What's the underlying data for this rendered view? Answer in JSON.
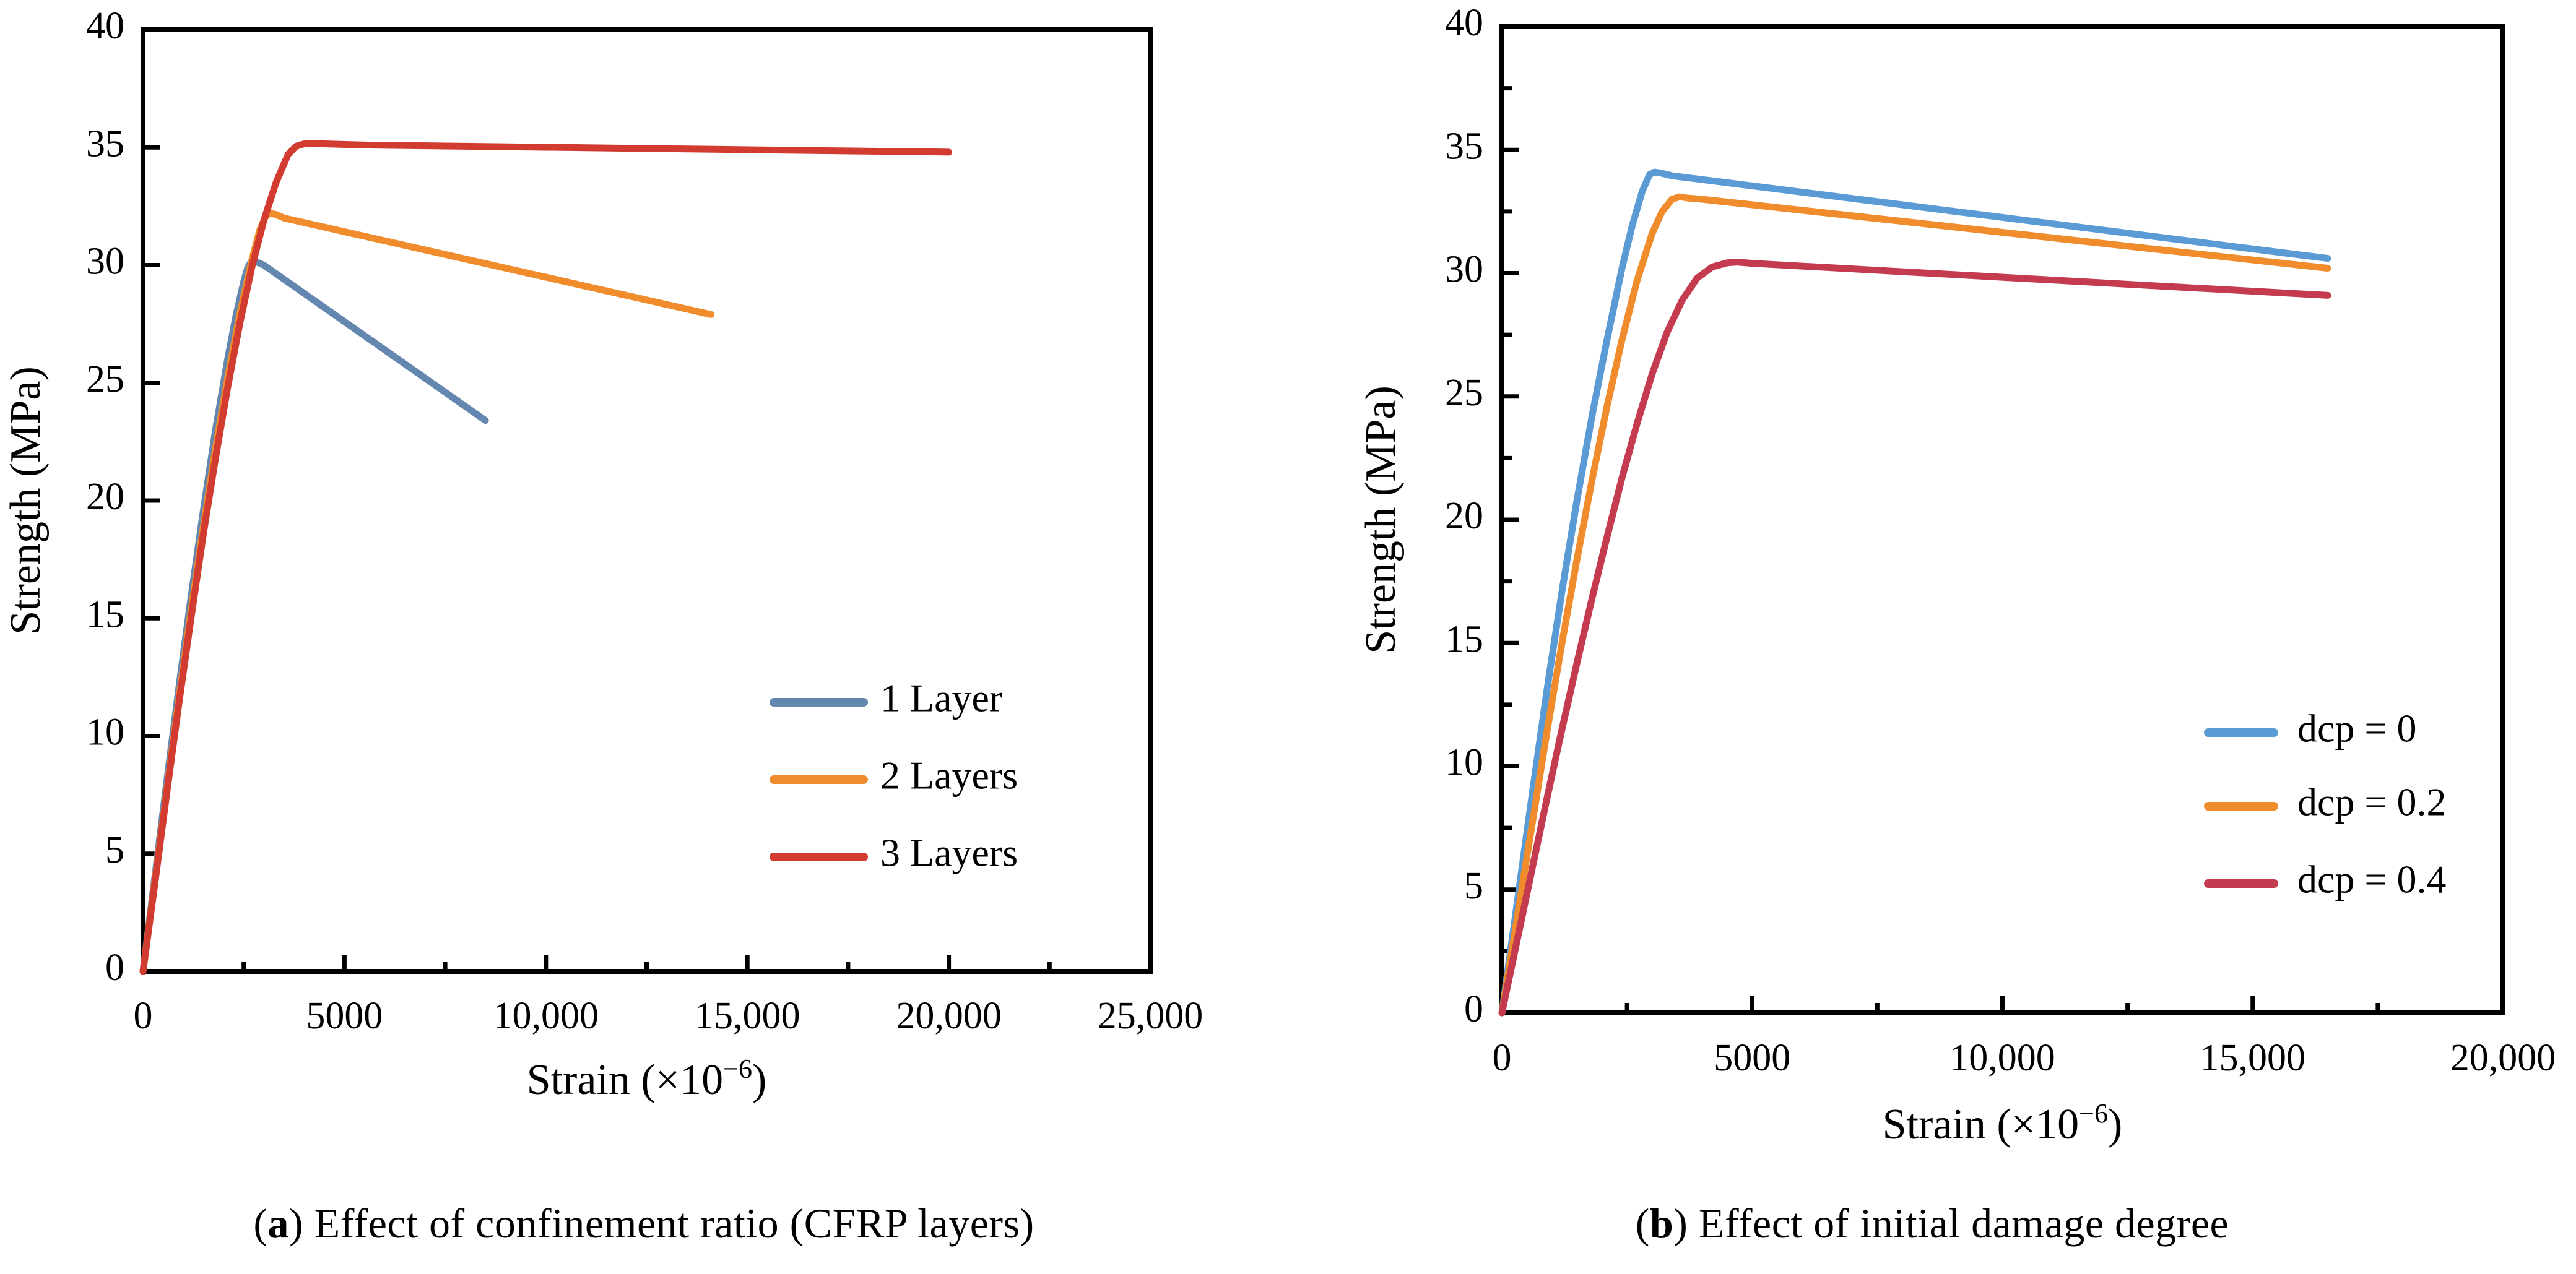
{
  "figure": {
    "background": "#ffffff",
    "text_color": "#000000",
    "axis_color": "#000000",
    "captions": {
      "a": {
        "pre": "(",
        "letter": "a",
        "post": ")",
        "text": " Effect of confinement ratio (CFRP layers)"
      },
      "b": {
        "pre": "(",
        "letter": "b",
        "post": ")",
        "text": " Effect of initial damage degree"
      }
    }
  },
  "chart_data": [
    {
      "id": "a",
      "type": "line",
      "title": "",
      "xlabel": {
        "base": "Strain (×10",
        "sup": "−6",
        "end": ")"
      },
      "ylabel": "Strength (MPa)",
      "xlim": [
        0,
        25000
      ],
      "ylim": [
        0,
        40
      ],
      "grid": false,
      "legend_position": "inside-right",
      "xticks": {
        "values": [
          0,
          5000,
          10000,
          15000,
          20000,
          25000
        ],
        "labels": [
          "0",
          "5000",
          "10,000",
          "15,000",
          "20,000",
          "25,000"
        ],
        "minor_step": 2500
      },
      "yticks": {
        "values": [
          0,
          5,
          10,
          15,
          20,
          25,
          30,
          35,
          40
        ],
        "labels": [
          "0",
          "5",
          "10",
          "15",
          "20",
          "25",
          "30",
          "35",
          "40"
        ],
        "minor_step": null
      },
      "series": [
        {
          "name": "1 Layer",
          "color": "#6487B0",
          "peak": {
            "strain": 2700,
            "strength": 30.2
          },
          "end": {
            "strain": 8500,
            "strength": 23.4
          },
          "points": [
            [
              0,
              0
            ],
            [
              300,
              4.1
            ],
            [
              600,
              8.2
            ],
            [
              900,
              12.2
            ],
            [
              1200,
              16.0
            ],
            [
              1500,
              19.6
            ],
            [
              1800,
              23.0
            ],
            [
              2100,
              26.0
            ],
            [
              2300,
              27.8
            ],
            [
              2500,
              29.3
            ],
            [
              2600,
              29.9
            ],
            [
              2700,
              30.2
            ],
            [
              2800,
              30.15
            ],
            [
              3000,
              30.0
            ],
            [
              8500,
              23.4
            ]
          ]
        },
        {
          "name": "2 Layers",
          "color": "#F08C2C",
          "peak": {
            "strain": 3100,
            "strength": 32.2
          },
          "end": {
            "strain": 14100,
            "strength": 27.9
          },
          "points": [
            [
              0,
              0
            ],
            [
              300,
              3.9
            ],
            [
              600,
              7.8
            ],
            [
              900,
              11.7
            ],
            [
              1200,
              15.4
            ],
            [
              1500,
              18.9
            ],
            [
              1800,
              22.2
            ],
            [
              2100,
              25.2
            ],
            [
              2400,
              27.9
            ],
            [
              2700,
              30.2
            ],
            [
              2900,
              31.5
            ],
            [
              3050,
              32.1
            ],
            [
              3150,
              32.2
            ],
            [
              3300,
              32.15
            ],
            [
              3500,
              32.0
            ],
            [
              14100,
              27.9
            ]
          ]
        },
        {
          "name": "3 Layers",
          "color": "#D13B30",
          "peak": {
            "strain": 3800,
            "strength": 35.1
          },
          "end": {
            "strain": 20000,
            "strength": 34.8
          },
          "points": [
            [
              0,
              0
            ],
            [
              300,
              3.8
            ],
            [
              600,
              7.7
            ],
            [
              900,
              11.5
            ],
            [
              1200,
              15.1
            ],
            [
              1500,
              18.6
            ],
            [
              1800,
              21.8
            ],
            [
              2100,
              24.8
            ],
            [
              2400,
              27.5
            ],
            [
              2700,
              29.9
            ],
            [
              3000,
              31.9
            ],
            [
              3300,
              33.5
            ],
            [
              3600,
              34.7
            ],
            [
              3800,
              35.05
            ],
            [
              4000,
              35.15
            ],
            [
              4500,
              35.15
            ],
            [
              5500,
              35.1
            ],
            [
              20000,
              34.8
            ]
          ]
        }
      ]
    },
    {
      "id": "b",
      "type": "line",
      "title": "",
      "xlabel": {
        "base": "Strain (×10",
        "sup": "−6",
        "end": ")"
      },
      "ylabel": "Strength (MPa)",
      "xlim": [
        0,
        20000
      ],
      "ylim": [
        0,
        40
      ],
      "grid": false,
      "legend_position": "inside-right",
      "xticks": {
        "values": [
          0,
          5000,
          10000,
          15000,
          20000
        ],
        "labels": [
          "0",
          "5000",
          "10,000",
          "15,000",
          "20,000"
        ],
        "minor_step": 2500
      },
      "yticks": {
        "values": [
          0,
          5,
          10,
          15,
          20,
          25,
          30,
          35,
          40
        ],
        "labels": [
          "0",
          "5",
          "10",
          "15",
          "20",
          "25",
          "30",
          "35",
          "40"
        ],
        "minor_step": 2.5
      },
      "series": [
        {
          "name": "dcp = 0",
          "color": "#5B9BD5",
          "peak": {
            "strain": 3000,
            "strength": 34.1
          },
          "end": {
            "strain": 16500,
            "strength": 30.6
          },
          "points": [
            [
              0,
              0
            ],
            [
              300,
              4.4
            ],
            [
              600,
              8.8
            ],
            [
              900,
              13.1
            ],
            [
              1200,
              17.1
            ],
            [
              1500,
              20.8
            ],
            [
              1800,
              24.2
            ],
            [
              2100,
              27.3
            ],
            [
              2400,
              30.2
            ],
            [
              2600,
              31.9
            ],
            [
              2800,
              33.3
            ],
            [
              2950,
              34.0
            ],
            [
              3050,
              34.1
            ],
            [
              3200,
              34.05
            ],
            [
              3400,
              33.95
            ],
            [
              16500,
              30.6
            ]
          ]
        },
        {
          "name": "dcp = 0.2",
          "color": "#F08C2C",
          "peak": {
            "strain": 3500,
            "strength": 33.1
          },
          "end": {
            "strain": 16500,
            "strength": 30.2
          },
          "points": [
            [
              0,
              0
            ],
            [
              300,
              3.8
            ],
            [
              600,
              7.6
            ],
            [
              900,
              11.4
            ],
            [
              1200,
              15.0
            ],
            [
              1500,
              18.4
            ],
            [
              1800,
              21.6
            ],
            [
              2100,
              24.6
            ],
            [
              2400,
              27.3
            ],
            [
              2700,
              29.7
            ],
            [
              3000,
              31.6
            ],
            [
              3200,
              32.5
            ],
            [
              3400,
              33.0
            ],
            [
              3550,
              33.1
            ],
            [
              3700,
              33.05
            ],
            [
              4000,
              33.0
            ],
            [
              16500,
              30.2
            ]
          ]
        },
        {
          "name": "dcp = 0.4",
          "color": "#C43A4E",
          "peak": {
            "strain": 4600,
            "strength": 30.45
          },
          "end": {
            "strain": 16500,
            "strength": 29.1
          },
          "points": [
            [
              0,
              0
            ],
            [
              300,
              2.9
            ],
            [
              600,
              5.8
            ],
            [
              900,
              8.7
            ],
            [
              1200,
              11.5
            ],
            [
              1500,
              14.2
            ],
            [
              1800,
              16.8
            ],
            [
              2100,
              19.3
            ],
            [
              2400,
              21.7
            ],
            [
              2700,
              23.9
            ],
            [
              3000,
              25.9
            ],
            [
              3300,
              27.6
            ],
            [
              3600,
              28.9
            ],
            [
              3900,
              29.8
            ],
            [
              4200,
              30.25
            ],
            [
              4500,
              30.42
            ],
            [
              4700,
              30.45
            ],
            [
              5000,
              30.4
            ],
            [
              16500,
              29.1
            ]
          ]
        }
      ]
    }
  ]
}
